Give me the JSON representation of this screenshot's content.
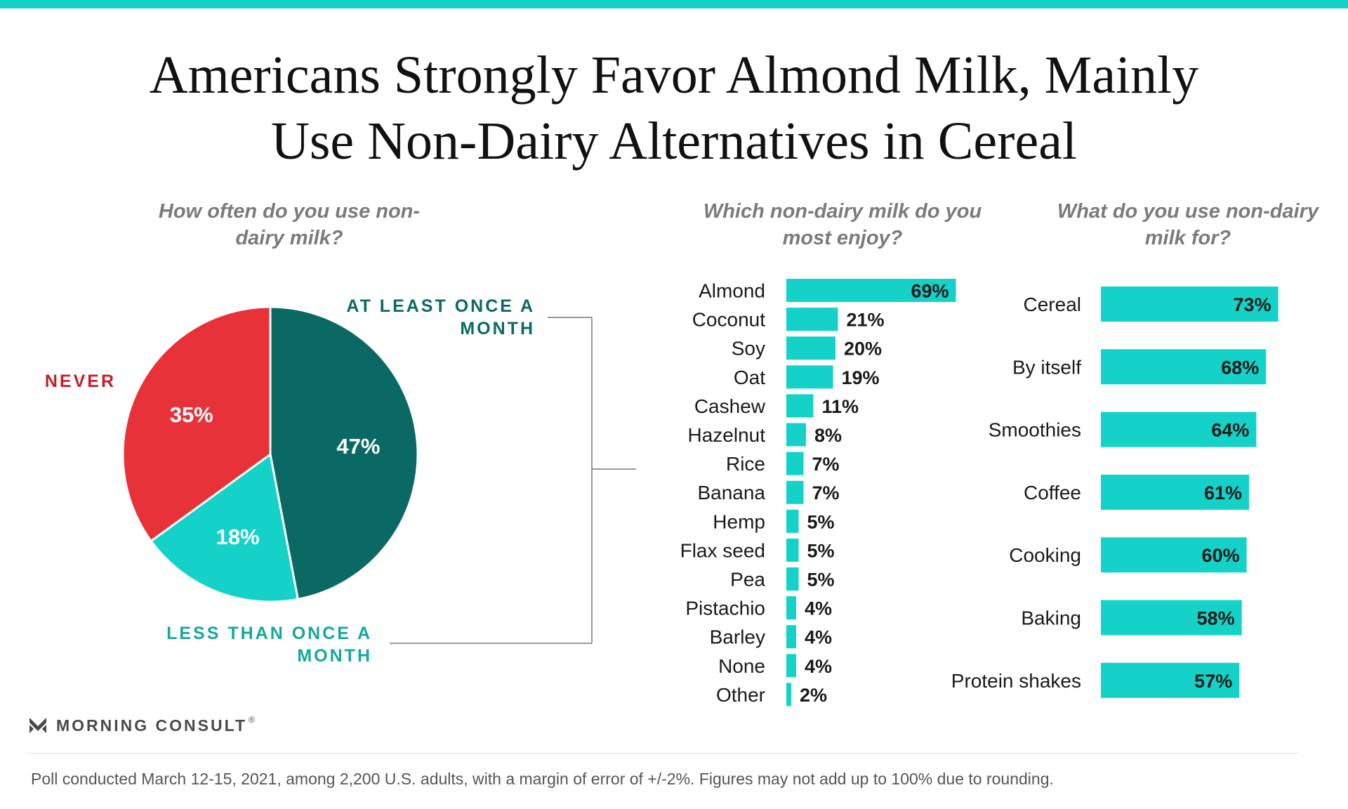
{
  "title": "Americans Strongly Favor Almond Milk, Mainly Use Non-Dairy Alternatives in Cereal",
  "colors": {
    "accent": "#14d2c8",
    "never": "#e8323a",
    "never_text": "#c41f2b",
    "monthly": "#0a6a63",
    "less": "#14d2c8",
    "less_text": "#14a89e"
  },
  "brand": {
    "name": "MORNING CONSULT",
    "mark": "®"
  },
  "footnote": "Poll conducted March 12-15, 2021, among 2,200 U.S. adults, with a margin of error of +/-2%. Figures may not add up to 100% due to rounding.",
  "chart_data": [
    {
      "type": "pie",
      "title": "How often do you use non-dairy milk?",
      "slices": [
        {
          "label": "AT LEAST ONCE A MONTH",
          "value": 47,
          "display": "47%"
        },
        {
          "label": "LESS THAN ONCE A MONTH",
          "value": 18,
          "display": "18%"
        },
        {
          "label": "NEVER",
          "value": 35,
          "display": "35%"
        }
      ]
    },
    {
      "type": "bar",
      "orientation": "horizontal",
      "title": "Which non-dairy milk do you most enjoy?",
      "categories": [
        "Almond",
        "Coconut",
        "Soy",
        "Oat",
        "Cashew",
        "Hazelnut",
        "Rice",
        "Banana",
        "Hemp",
        "Flax seed",
        "Pea",
        "Pistachio",
        "Barley",
        "None",
        "Other"
      ],
      "values": [
        69,
        21,
        20,
        19,
        11,
        8,
        7,
        7,
        5,
        5,
        5,
        4,
        4,
        4,
        2
      ],
      "labels": [
        "69%",
        "21%",
        "20%",
        "19%",
        "11%",
        "8%",
        "7%",
        "7%",
        "5%",
        "5%",
        "5%",
        "4%",
        "4%",
        "4%",
        "2%"
      ]
    },
    {
      "type": "bar",
      "orientation": "horizontal",
      "title": "What do you use non-dairy milk for?",
      "categories": [
        "Cereal",
        "By itself",
        "Smoothies",
        "Coffee",
        "Cooking",
        "Baking",
        "Protein shakes"
      ],
      "values": [
        73,
        68,
        64,
        61,
        60,
        58,
        57
      ],
      "labels": [
        "73%",
        "68%",
        "64%",
        "61%",
        "60%",
        "58%",
        "57%"
      ]
    }
  ]
}
